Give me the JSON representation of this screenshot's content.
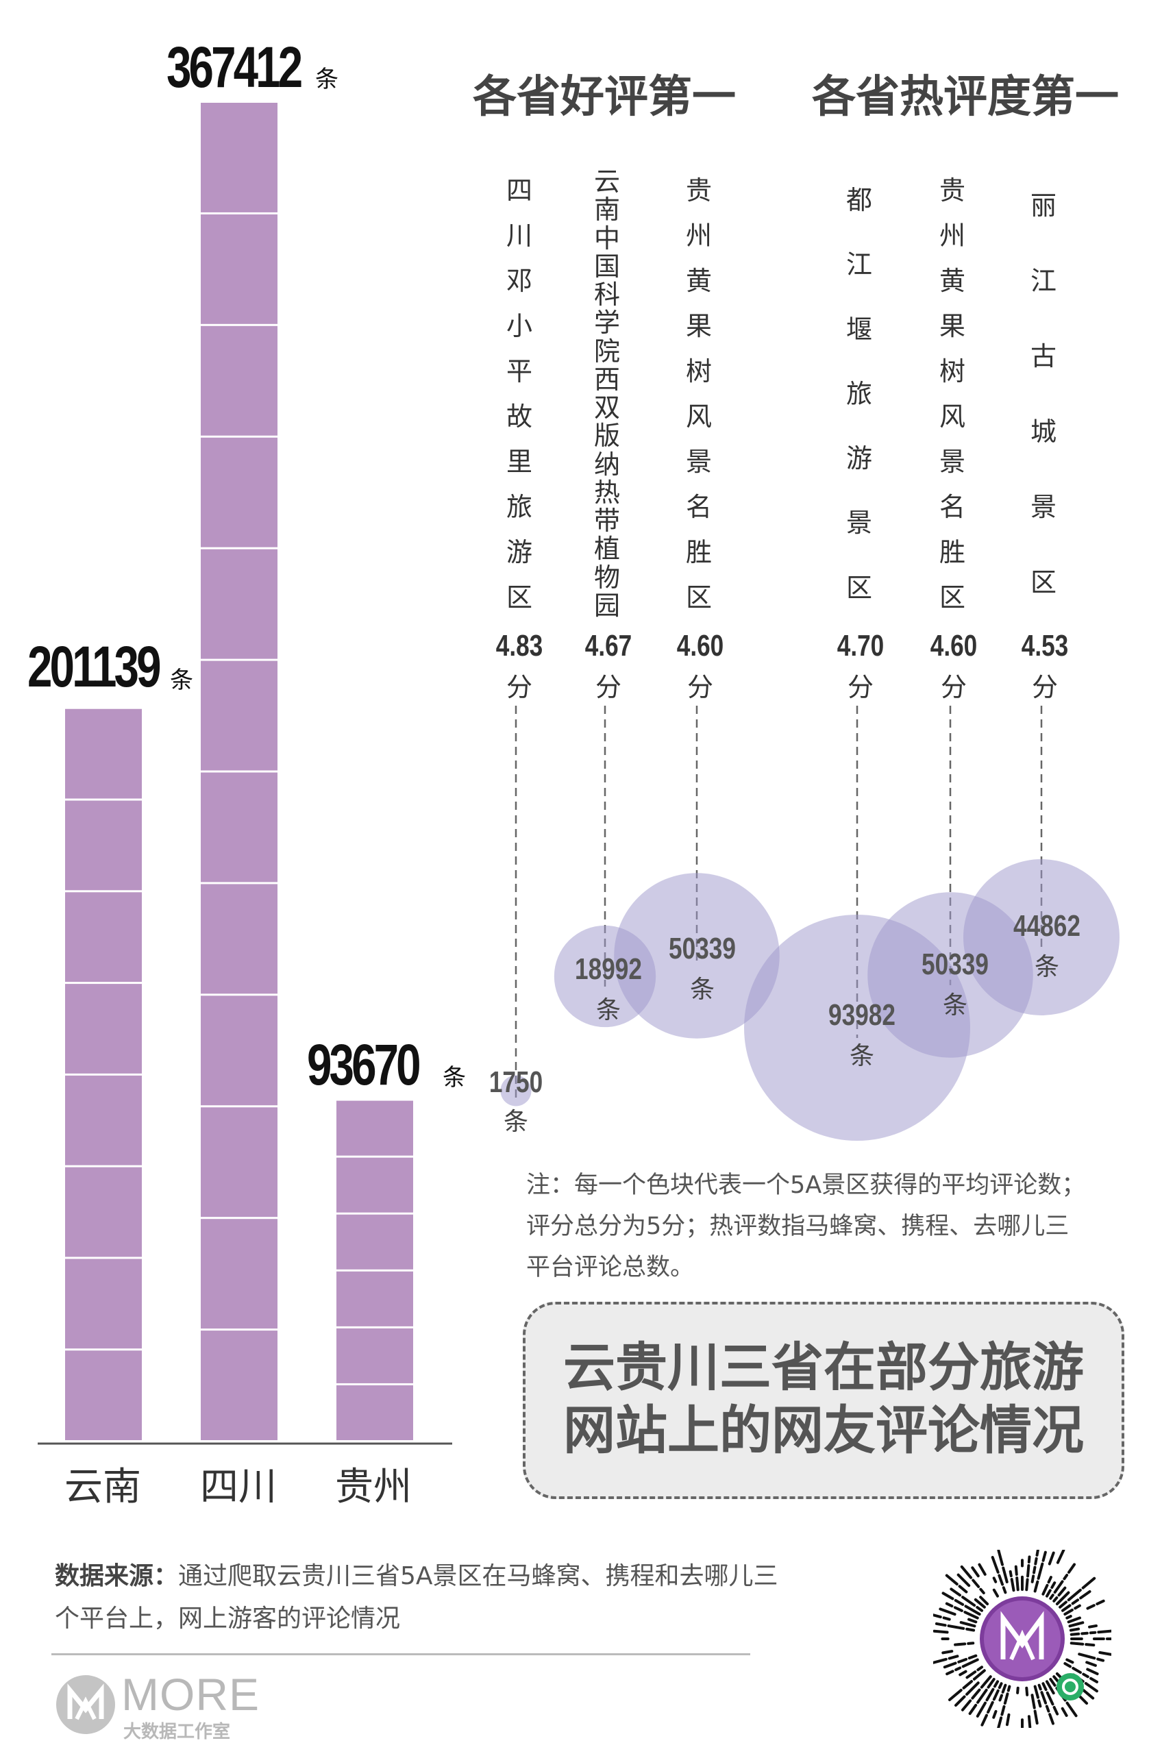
{
  "chart_data": [
    {
      "type": "bar",
      "categories": [
        "云南",
        "四川",
        "贵州"
      ],
      "values": [
        201139,
        367412,
        93670
      ],
      "value_labels": [
        "201139",
        "367412",
        "93670"
      ],
      "unit": "条",
      "blocks": [
        8,
        12,
        6
      ],
      "color": "#b894c2"
    },
    {
      "type": "scatter",
      "groups": [
        {
          "title": "各省好评第一",
          "items": [
            {
              "name": "四川邓小平故里旅游区",
              "score": "4.83",
              "reviews": 1750
            },
            {
              "name": "云南中国科学院西双版纳热带植物园",
              "score": "4.67",
              "reviews": 18992
            },
            {
              "name": "贵州黄果树风景名胜区",
              "score": "4.60",
              "reviews": 50339
            }
          ]
        },
        {
          "title": "各省热评度第一",
          "items": [
            {
              "name": "都江堰旅游景区",
              "score": "4.70",
              "reviews": 93982
            },
            {
              "name": "贵州黄果树风景名胜区",
              "score": "4.60",
              "reviews": 50339
            },
            {
              "name": "丽江古城景区",
              "score": "4.53",
              "reviews": 44862
            }
          ]
        }
      ],
      "score_unit": "分",
      "reviews_unit": "条",
      "bubble_color": "#9d98cb"
    }
  ],
  "note": {
    "lines": [
      "注：每一个色块代表一个5A景区获得的平均评论数；",
      "评分总分为5分；热评数指马蜂窝、携程、去哪儿三",
      "平台评论总数。"
    ]
  },
  "title": {
    "line1": "云贵川三省在部分旅游",
    "line2": "网站上的网友评论情况"
  },
  "source": {
    "label": "数据来源：",
    "line1": "通过爬取云贵川三省5A景区在马蜂窝、携程和去哪儿三",
    "line2": "个平台上，网上游客的评论情况"
  },
  "logo": {
    "text": "MORE",
    "subtext": "大数据工作室"
  },
  "qr": {
    "icon": "miniprogram-qr-icon"
  }
}
